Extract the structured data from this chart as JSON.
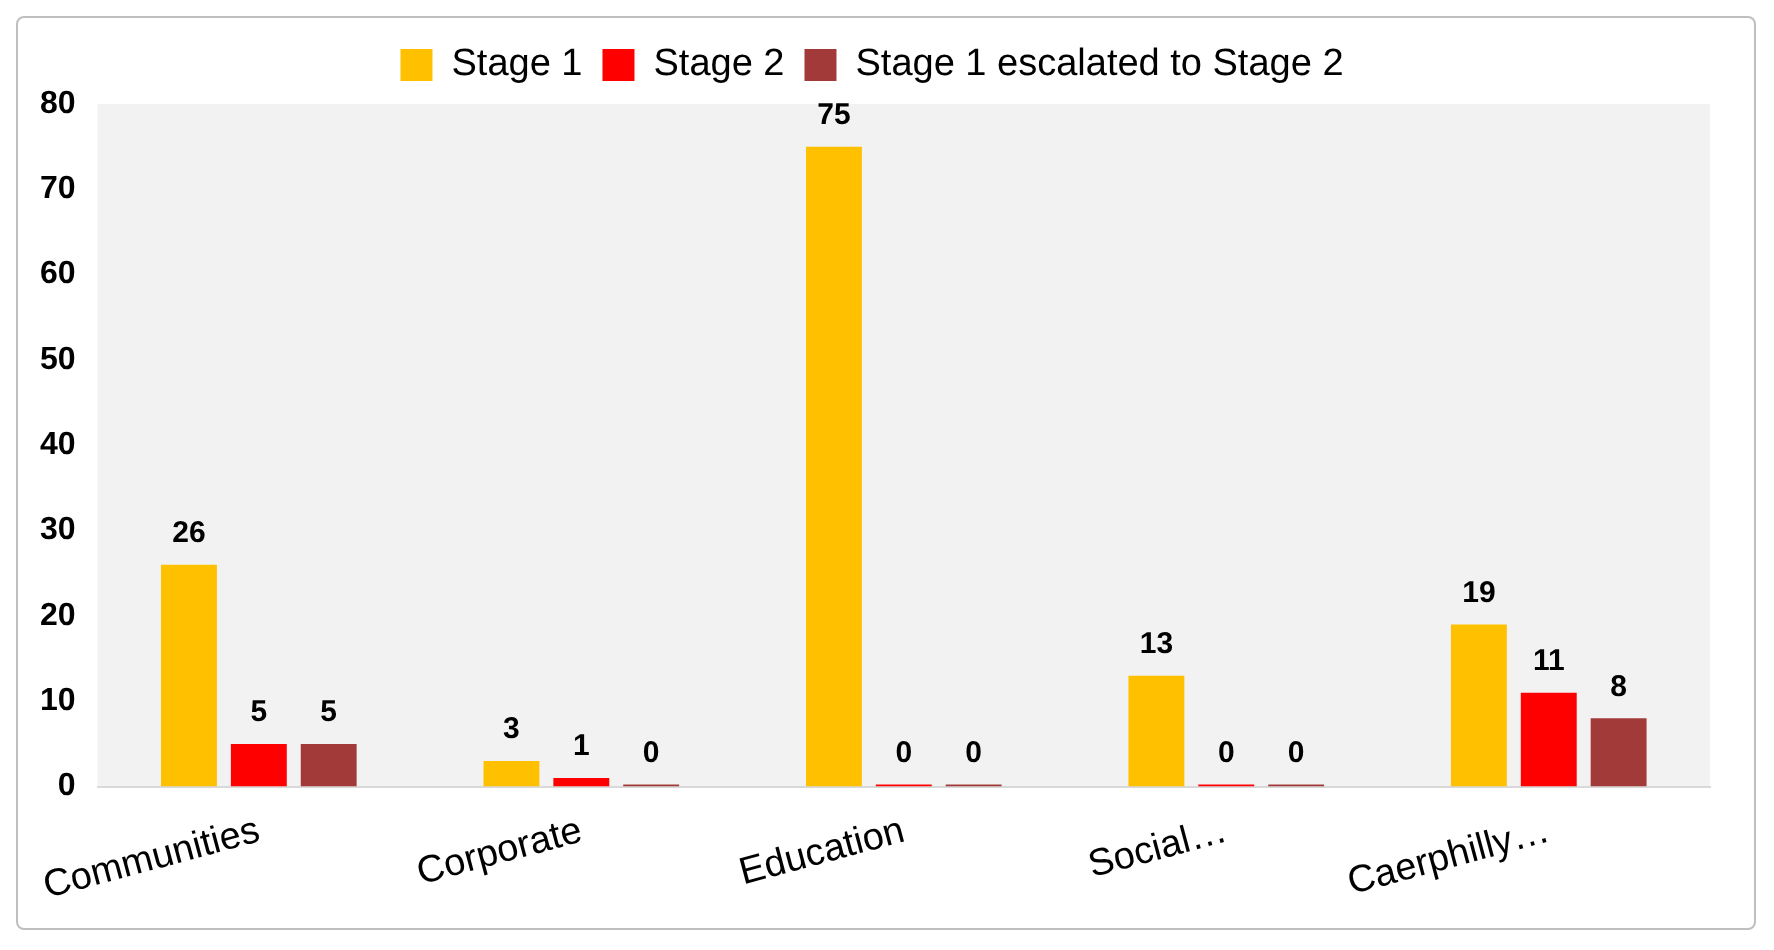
{
  "chart_data": {
    "type": "bar",
    "categories": [
      "Communities",
      "Corporate",
      "Education",
      "Social…",
      "Caerphilly…"
    ],
    "series": [
      {
        "name": "Stage 1",
        "color": "#ffc000",
        "values": [
          26,
          3,
          75,
          13,
          19
        ]
      },
      {
        "name": "Stage 2",
        "color": "#ff0000",
        "values": [
          5,
          1,
          0,
          0,
          11
        ]
      },
      {
        "name": "Stage 1 escalated to Stage 2",
        "color": "#a33a3a",
        "values": [
          5,
          0,
          0,
          0,
          8
        ]
      }
    ],
    "ylim": [
      0,
      80
    ],
    "yticks": [
      0,
      10,
      20,
      30,
      40,
      50,
      60,
      70,
      80
    ],
    "grid": false,
    "legend": "top",
    "data_labels": true
  }
}
